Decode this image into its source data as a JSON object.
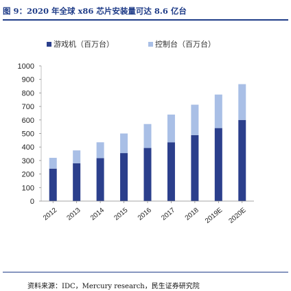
{
  "title": "图 9：2020 年全球 x86 芯片安装量可达 8.6 亿台",
  "source": "资料来源：IDC，Mercury research，民生证券研究院",
  "colors": {
    "title": "#1f3c88",
    "series_game": "#2b3f8c",
    "series_console": "#a9bfe6",
    "axis_text": "#222222"
  },
  "chart_data": {
    "type": "bar",
    "stacked": true,
    "categories": [
      "2012",
      "2013",
      "2014",
      "2015",
      "2016",
      "2017",
      "2018",
      "2019E",
      "2020E"
    ],
    "series": [
      {
        "name": "游戏机（百万台）",
        "values": [
          240,
          280,
          318,
          355,
          393,
          435,
          488,
          540,
          600
        ]
      },
      {
        "name": "控制台（百万台）",
        "values": [
          80,
          95,
          117,
          145,
          177,
          205,
          225,
          248,
          265
        ]
      }
    ],
    "ylim": [
      0,
      1000
    ],
    "yticks": [
      "0",
      "100",
      "200",
      "300",
      "400",
      "500",
      "600",
      "700",
      "800",
      "900",
      "1000"
    ],
    "legend": "top",
    "grid": false
  }
}
